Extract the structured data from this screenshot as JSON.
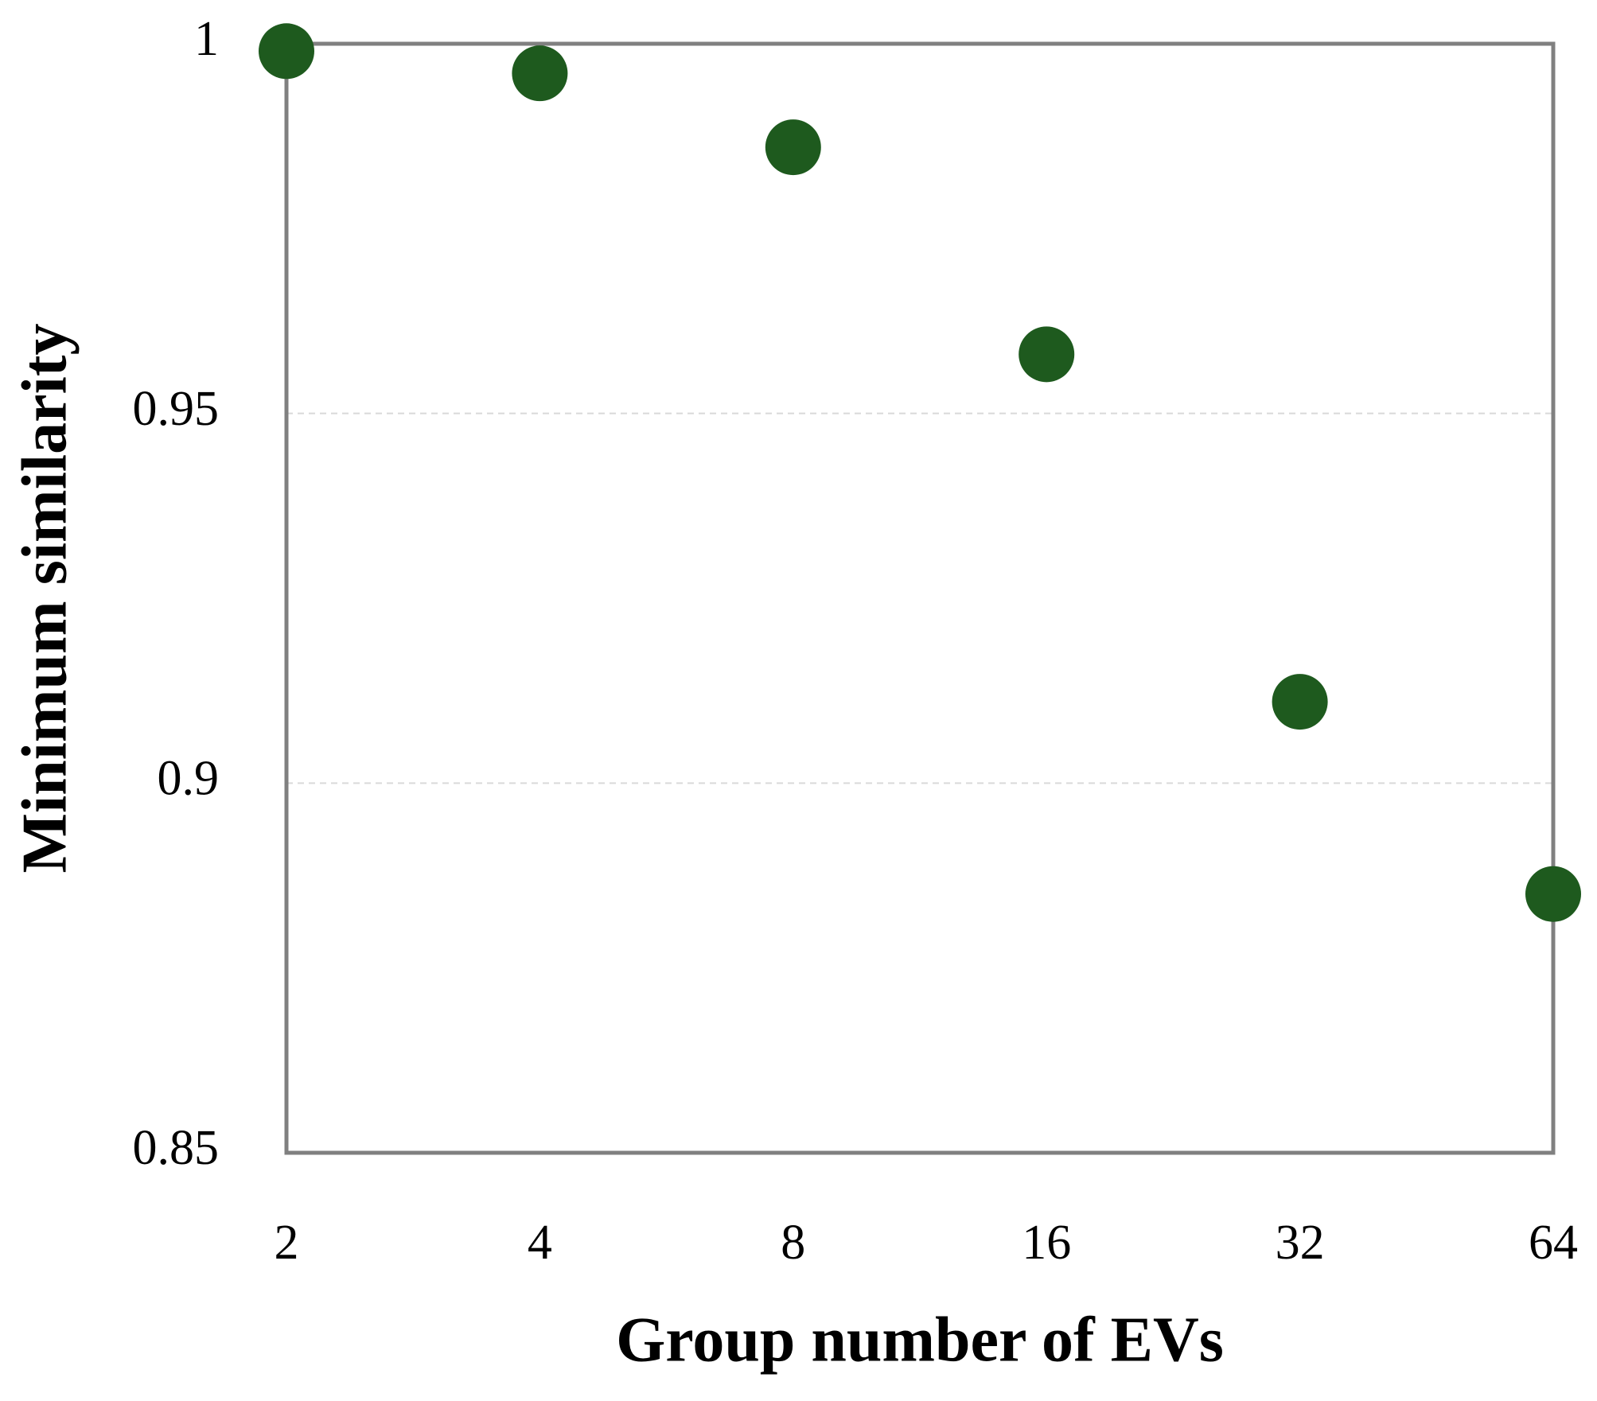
{
  "chart_data": {
    "type": "scatter",
    "x_label": "Group number of EVs",
    "y_label": "Minimum similarity",
    "x": [
      2,
      4,
      8,
      16,
      32,
      64
    ],
    "series": [
      {
        "color": "#1e5a1e",
        "values": [
          0.999,
          0.996,
          0.986,
          0.958,
          0.911,
          0.885
        ]
      }
    ],
    "x_scale": "log2",
    "xlim": [
      2,
      64
    ],
    "xticks": [
      2,
      4,
      8,
      16,
      32,
      64
    ],
    "ylim": [
      0.85,
      1
    ],
    "yticks": [
      0.85,
      0.9,
      0.95,
      1
    ],
    "grid": true
  }
}
